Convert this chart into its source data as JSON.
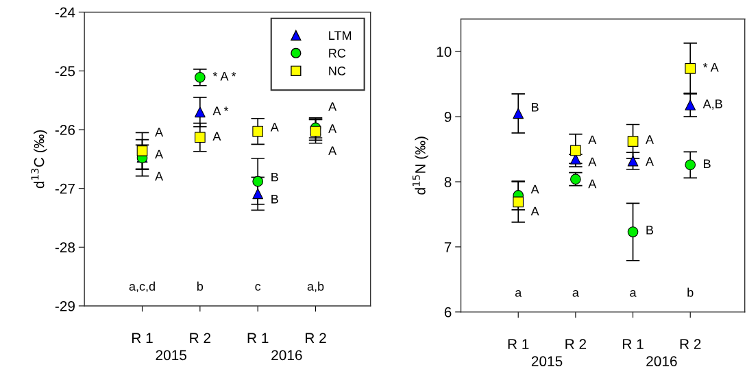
{
  "chart_data": [
    {
      "type": "scatter",
      "categories": [
        "R 1",
        "R 2",
        "R 1",
        "R 2"
      ],
      "ylabel": "d$^{13}$C (‰)",
      "ylim": [
        -29,
        -24
      ],
      "yticks": [
        -29,
        -28,
        -27,
        -26,
        -25,
        -24
      ],
      "legend": "top right",
      "grid": false,
      "annotations": [
        "a,c,d",
        "b",
        "c",
        "a,b",
        "2015",
        "2016"
      ],
      "series": [
        {
          "name": "LTM",
          "color": "#0000ff",
          "marker": "triangle",
          "values": [
            -26.47,
            -25.7,
            -27.09,
            -26.0
          ],
          "errors": [
            0.21,
            0.25,
            0.28,
            0.18
          ],
          "value_labels": [
            "A",
            "A *",
            "B",
            "A"
          ]
        },
        {
          "name": "RC",
          "color": "#00ee00",
          "marker": "circle",
          "values": [
            -26.48,
            -25.11,
            -26.88,
            -25.97
          ],
          "errors": [
            0.31,
            0.14,
            0.39,
            0.17
          ],
          "value_labels": [
            "A",
            "* A *",
            "B",
            "A"
          ]
        },
        {
          "name": "NC",
          "color": "#ffff00",
          "marker": "square",
          "values": [
            -26.36,
            -26.13,
            -26.03,
            -26.03
          ],
          "errors": [
            0.31,
            0.24,
            0.22,
            0.2
          ],
          "value_labels": [
            "A",
            "A",
            "A",
            "A"
          ]
        }
      ]
    },
    {
      "type": "scatter",
      "categories": [
        "R 1",
        "R 2",
        "R 1",
        "R 2"
      ],
      "ylabel": "d$^{15}$N (‰)",
      "ylim": [
        6,
        10.5
      ],
      "yticks": [
        6,
        7,
        8,
        9,
        10
      ],
      "legend": false,
      "grid": false,
      "annotations": [
        "a",
        "a",
        "a",
        "b",
        "2015",
        "2016"
      ],
      "series": [
        {
          "color": "#0000ff",
          "marker": "triangle",
          "values": [
            9.05,
            8.35,
            8.32,
            9.18
          ],
          "errors": [
            0.3,
            0.07,
            0.13,
            0.18
          ],
          "value_labels": [
            "B",
            "A",
            "A",
            "A,B"
          ]
        },
        {
          "color": "#00ee00",
          "marker": "circle",
          "values": [
            7.79,
            8.04,
            7.23,
            8.26
          ],
          "errors": [
            0.22,
            0.1,
            0.44,
            0.2
          ],
          "value_labels": [
            "A",
            "A",
            "B",
            "B"
          ]
        },
        {
          "color": "#ffff00",
          "marker": "square",
          "values": [
            7.69,
            8.48,
            8.62,
            9.74
          ],
          "errors": [
            0.31,
            0.25,
            0.26,
            0.39
          ],
          "value_labels": [
            "A",
            "A",
            "A",
            "* A"
          ]
        }
      ]
    }
  ]
}
